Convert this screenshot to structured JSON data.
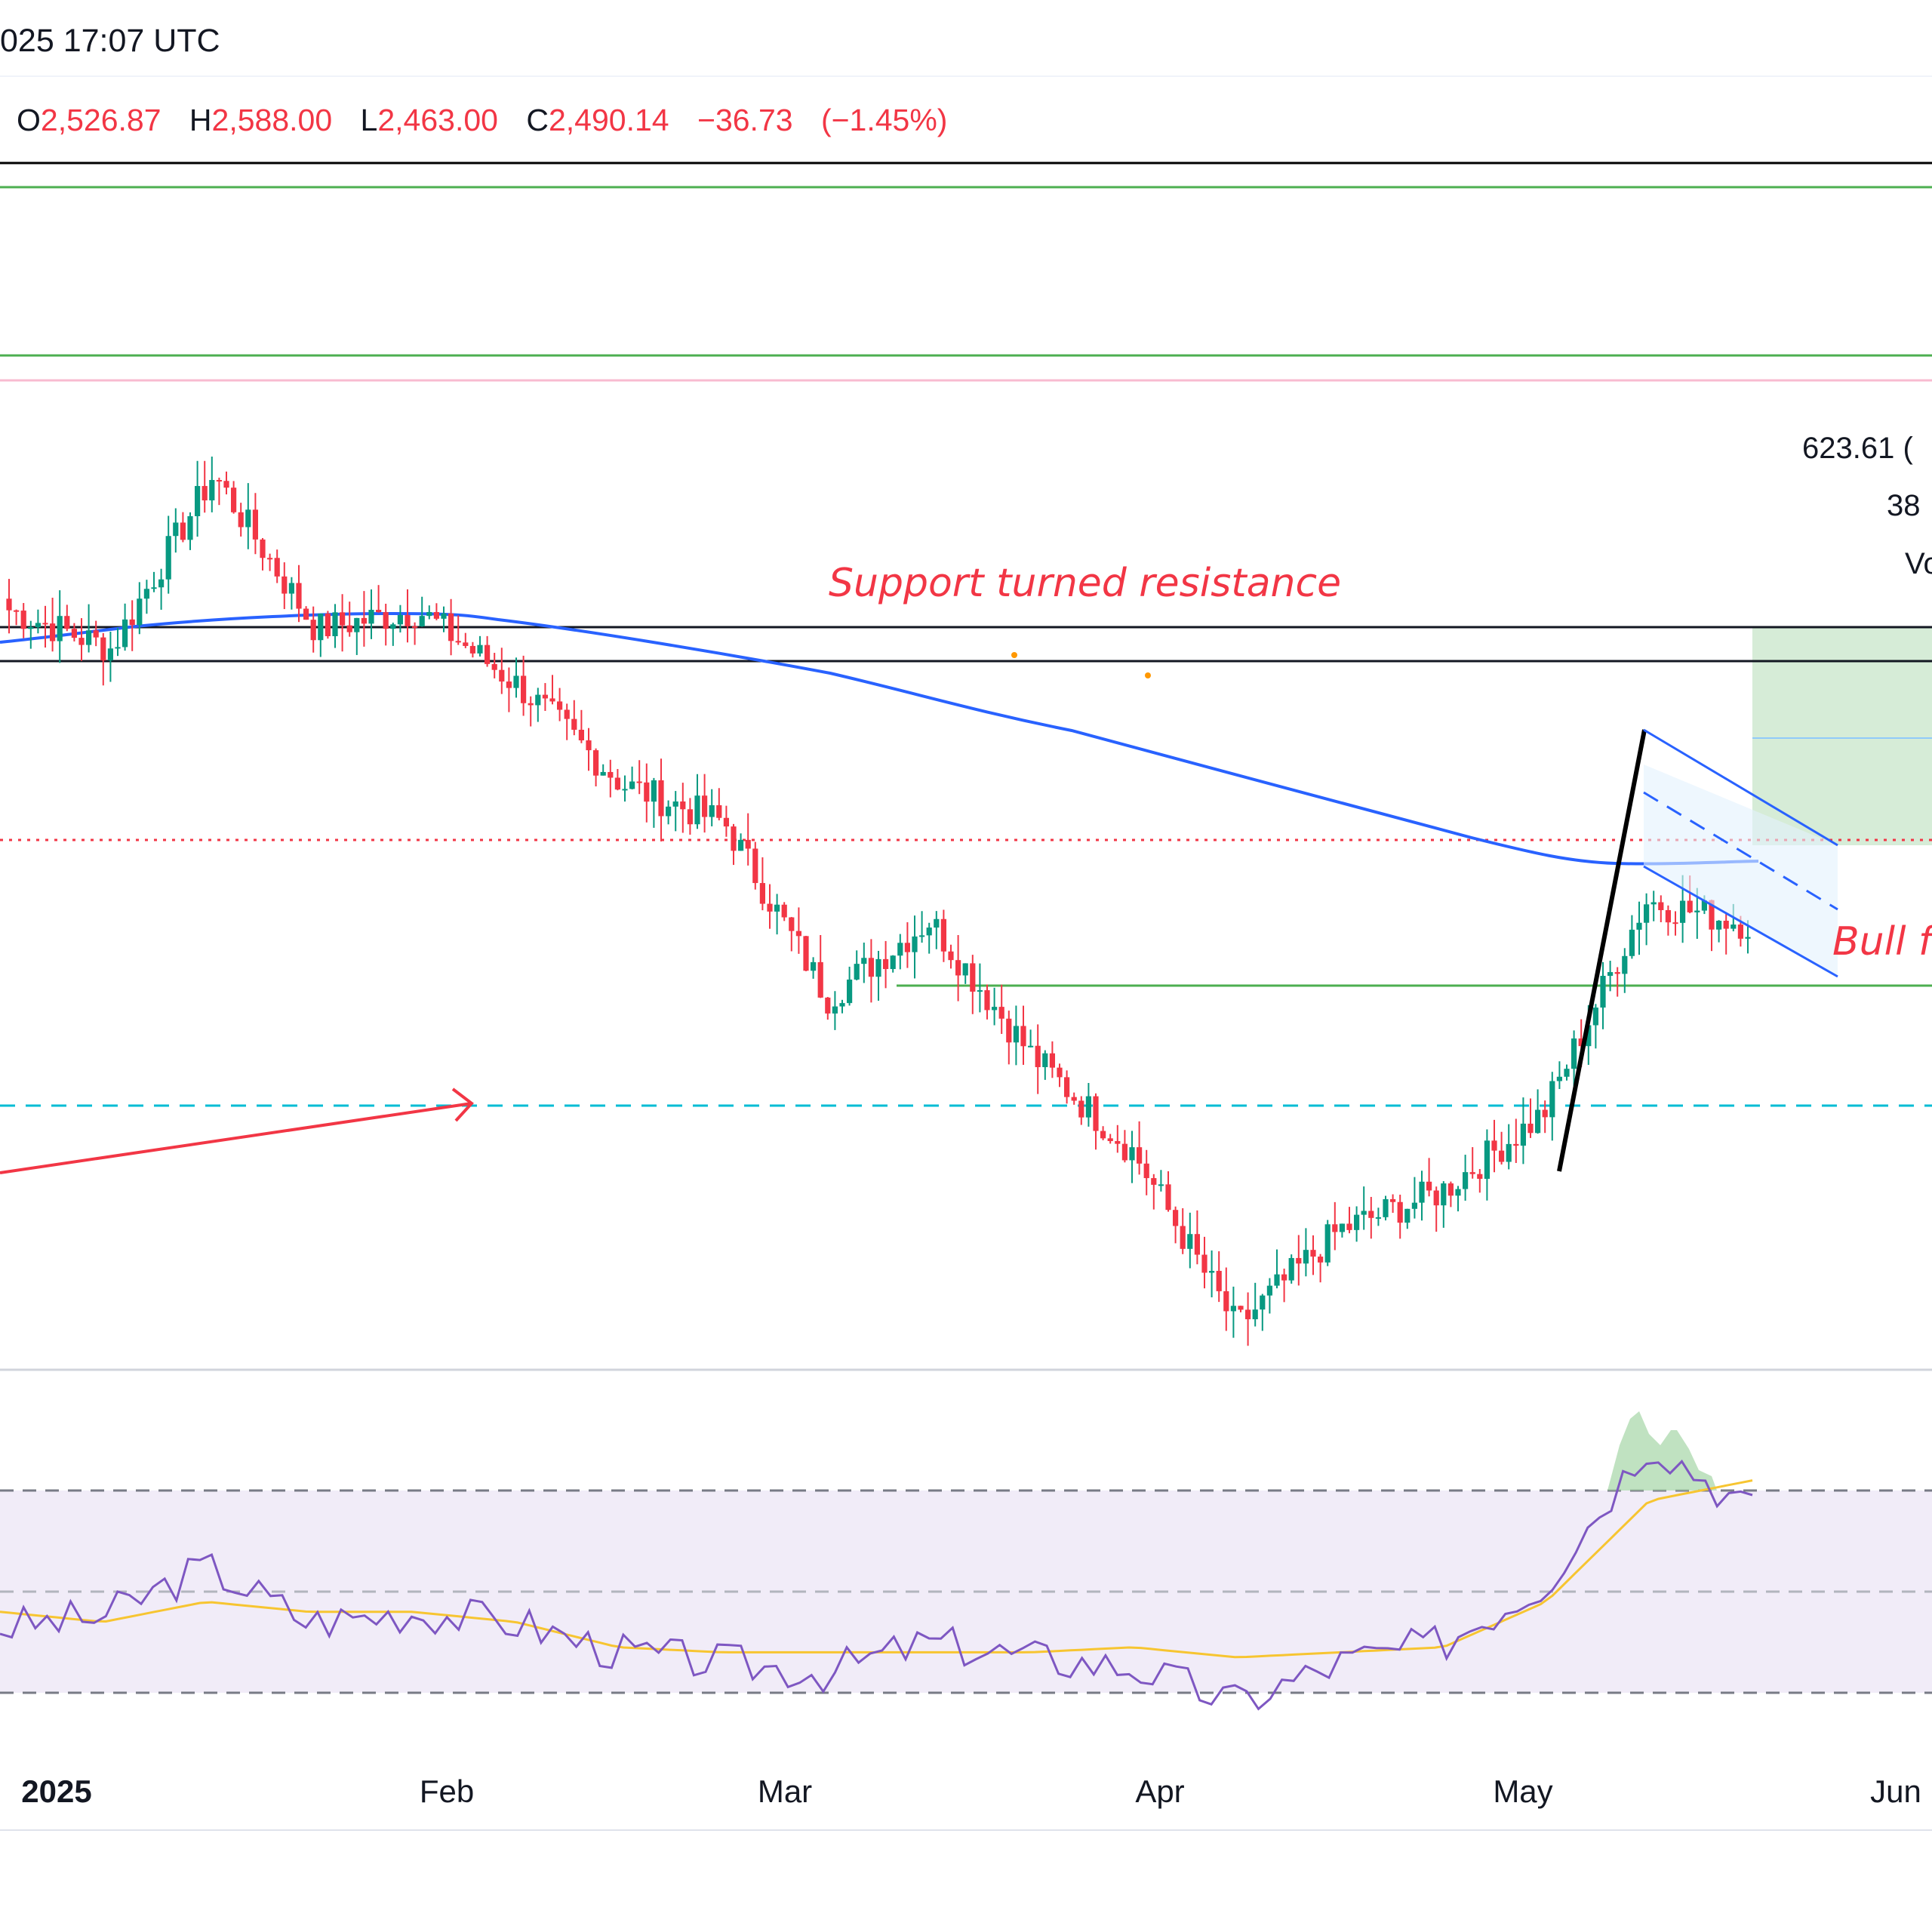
{
  "header": {
    "timestamp": "025 17:07 UTC",
    "ohlc": {
      "open_label": "O",
      "open": "2,526.87",
      "high_label": "H",
      "high": "2,588.00",
      "low_label": "L",
      "low": "2,463.00",
      "close_label": "C",
      "close": "2,490.14",
      "change": "−36.73",
      "change_pct": "(−1.45%)"
    }
  },
  "colors": {
    "up": "#089981",
    "down": "#f23645",
    "ma": "#2962ff",
    "rsi": "#7e57c2",
    "rsi_ma": "#f7c531",
    "support_line": "#4caf50",
    "pink_line": "#f8bbd0",
    "dashed_cyan": "#00bcd4",
    "annotation_red": "#f23645",
    "flag": "#2962ff"
  },
  "annotations": {
    "resistance": "Support turned resistance",
    "bull_flag": "Bull f"
  },
  "measure_box": {
    "line1": "623.61 (",
    "line2": "38",
    "line3": "Vo"
  },
  "chart_data": {
    "type": "candlestick",
    "x_ticks": [
      "2025",
      "Feb",
      "Mar",
      "Apr",
      "May",
      "Jun"
    ],
    "price_pane": {
      "series": [
        {
          "type": "candles",
          "approx_close_path": [
            3300,
            3200,
            3650,
            3250,
            3300,
            3100,
            2850,
            2750,
            2300,
            2500,
            2150,
            1900,
            1450,
            1700,
            1800,
            2000,
            2550,
            2490
          ]
        },
        {
          "type": "line",
          "role": "moving average",
          "trend": "declining"
        }
      ],
      "last_close": "2,490.14"
    },
    "rsi_pane": {
      "levels": [
        70,
        50,
        30
      ],
      "series": [
        {
          "type": "line",
          "role": "RSI"
        },
        {
          "type": "line",
          "role": "RSI moving average"
        }
      ]
    }
  }
}
